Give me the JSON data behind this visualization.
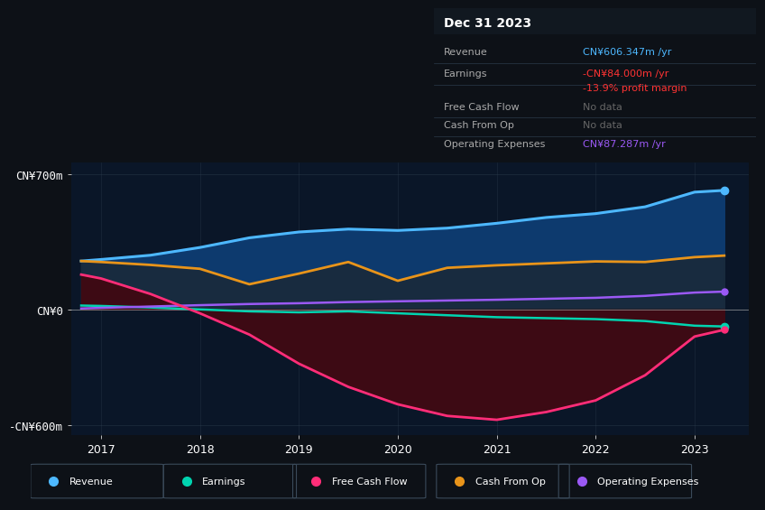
{
  "background_color": "#0d1117",
  "chart_bg": "#0a1628",
  "years": [
    2016.8,
    2017,
    2017.5,
    2018,
    2018.5,
    2019,
    2019.5,
    2020,
    2020.5,
    2021,
    2021.5,
    2022,
    2022.5,
    2023,
    2023.3
  ],
  "revenue": [
    250,
    258,
    280,
    320,
    370,
    400,
    415,
    408,
    420,
    445,
    475,
    495,
    530,
    606,
    615
  ],
  "earnings": [
    20,
    18,
    10,
    0,
    -10,
    -15,
    -10,
    -20,
    -30,
    -40,
    -45,
    -50,
    -60,
    -84,
    -88
  ],
  "free_cash_flow": [
    180,
    160,
    80,
    -20,
    -130,
    -280,
    -400,
    -490,
    -550,
    -570,
    -530,
    -470,
    -340,
    -140,
    -105
  ],
  "cash_from_op": [
    250,
    245,
    230,
    210,
    130,
    185,
    245,
    148,
    215,
    228,
    238,
    248,
    245,
    270,
    278
  ],
  "operating_expenses": [
    5,
    8,
    15,
    22,
    28,
    32,
    38,
    42,
    46,
    50,
    55,
    60,
    70,
    87,
    92
  ],
  "revenue_color": "#4db8ff",
  "earnings_color": "#00d4b0",
  "free_cash_flow_color": "#ff2d78",
  "cash_from_op_color": "#e8941a",
  "operating_expenses_color": "#9b59f5",
  "revenue_fill": "#0d3a6e",
  "cfo_fill": "#1a2a3a",
  "earnings_fill": "#0a2a22",
  "fcf_fill": "#3d0a14",
  "ylim_min": -650,
  "ylim_max": 760,
  "xlim_min": 2016.7,
  "xlim_max": 2023.55,
  "ytick_vals": [
    -600,
    0,
    700
  ],
  "ytick_labels": [
    "-CN¥600m",
    "CN¥0",
    "CN¥700m"
  ],
  "xtick_vals": [
    2017,
    2018,
    2019,
    2020,
    2021,
    2022,
    2023
  ],
  "legend_labels": [
    "Revenue",
    "Earnings",
    "Free Cash Flow",
    "Cash From Op",
    "Operating Expenses"
  ],
  "legend_colors": [
    "#4db8ff",
    "#00d4b0",
    "#ff2d78",
    "#e8941a",
    "#9b59f5"
  ],
  "info_box_title": "Dec 31 2023",
  "info_rows": [
    {
      "label": "Revenue",
      "value": "CN¥606.347m /yr",
      "value_color": "#4db8ff"
    },
    {
      "label": "Earnings",
      "value": "-CN¥84.000m /yr",
      "value_color": "#ff3333"
    },
    {
      "label": "",
      "value": "-13.9% profit margin",
      "value_color": "#ff3333"
    },
    {
      "label": "Free Cash Flow",
      "value": "No data",
      "value_color": "#666666"
    },
    {
      "label": "Cash From Op",
      "value": "No data",
      "value_color": "#666666"
    },
    {
      "label": "Operating Expenses",
      "value": "CN¥87.287m /yr",
      "value_color": "#9b59f5"
    }
  ]
}
